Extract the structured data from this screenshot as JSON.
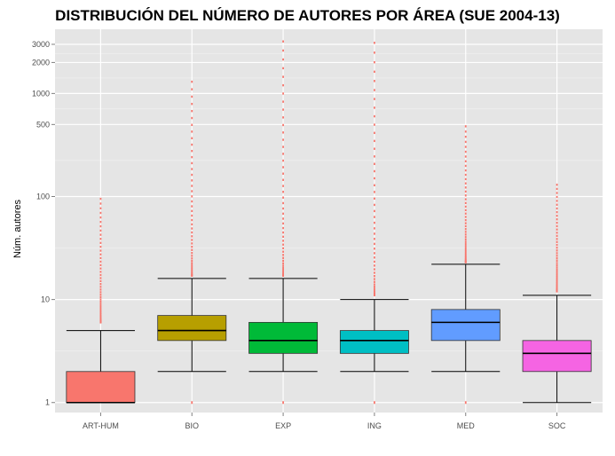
{
  "chart_data": {
    "type": "boxplot",
    "title": "DISTRIBUCIÓN DEL NÚMERO DE AUTORES POR ÁREA (SUE 2004-13)",
    "xlabel": "",
    "ylabel": "Núm. autores",
    "y_scale": "log10",
    "ylim": [
      0.8,
      4200
    ],
    "y_ticks": [
      1,
      10,
      100,
      500,
      1000,
      2000,
      3000
    ],
    "grid": true,
    "legend": "none",
    "categories": [
      "ART-HUM",
      "BIO",
      "EXP",
      "ING",
      "MED",
      "SOC"
    ],
    "colors": [
      "#F8766D",
      "#B79F00",
      "#00BA38",
      "#00BFC4",
      "#619CFF",
      "#F564E3"
    ],
    "outlier_color": "#F8766D",
    "boxes": [
      {
        "category": "ART-HUM",
        "lower_whisker": 1,
        "q1": 1,
        "median": 1,
        "q3": 2,
        "upper_whisker": 5,
        "outlier_range": [
          6,
          95
        ],
        "low_outlier": false
      },
      {
        "category": "BIO",
        "lower_whisker": 2,
        "q1": 4,
        "median": 5,
        "q3": 7,
        "upper_whisker": 16,
        "outlier_range": [
          17,
          1300
        ],
        "low_outlier": true
      },
      {
        "category": "EXP",
        "lower_whisker": 2,
        "q1": 3,
        "median": 4,
        "q3": 6,
        "upper_whisker": 16,
        "outlier_range": [
          17,
          3200
        ],
        "low_outlier": true
      },
      {
        "category": "ING",
        "lower_whisker": 2,
        "q1": 3,
        "median": 4,
        "q3": 5,
        "upper_whisker": 10,
        "outlier_range": [
          11,
          3100
        ],
        "low_outlier": true
      },
      {
        "category": "MED",
        "lower_whisker": 2,
        "q1": 4,
        "median": 6,
        "q3": 8,
        "upper_whisker": 22,
        "outlier_range": [
          23,
          480
        ],
        "low_outlier": true
      },
      {
        "category": "SOC",
        "lower_whisker": 1,
        "q1": 2,
        "median": 3,
        "q3": 4,
        "upper_whisker": 11,
        "outlier_range": [
          12,
          130
        ],
        "low_outlier": false
      }
    ]
  }
}
